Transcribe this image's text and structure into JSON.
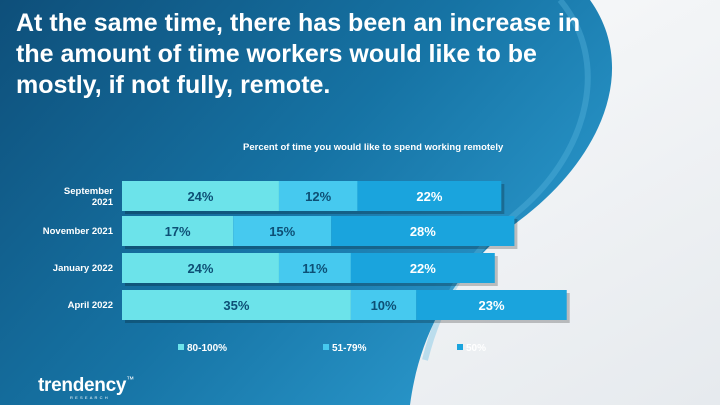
{
  "headline": "At the same time, there has been an increase in the amount of time workers would like to be mostly, if not fully, remote.",
  "colors": {
    "background_dark": "#0e4f7a",
    "background_mid": "#1f86b8",
    "background_light": "#f2f4f6",
    "series_80_100": "#6ce3ea",
    "series_51_79": "#46c9ef",
    "series_50": "#1aa4dd"
  },
  "brand": {
    "logo_text": "trendency",
    "logo_sub": "RESEARCH"
  },
  "chart_data": {
    "type": "bar",
    "orientation": "horizontal",
    "stacked": true,
    "title": "Percent of time you would like to spend working remotely",
    "categories": [
      "September 2021",
      "November 2021",
      "January 2022",
      "April 2022"
    ],
    "series": [
      {
        "name": "80-100%",
        "values": [
          24,
          17,
          24,
          35
        ],
        "color": "#6ce3ea"
      },
      {
        "name": "51-79%",
        "values": [
          12,
          15,
          11,
          10
        ],
        "color": "#46c9ef"
      },
      {
        "name": "50%",
        "values": [
          22,
          28,
          22,
          23
        ],
        "color": "#1aa4dd"
      }
    ],
    "legend_position": "bottom",
    "grid": false,
    "value_labels": "inside"
  }
}
